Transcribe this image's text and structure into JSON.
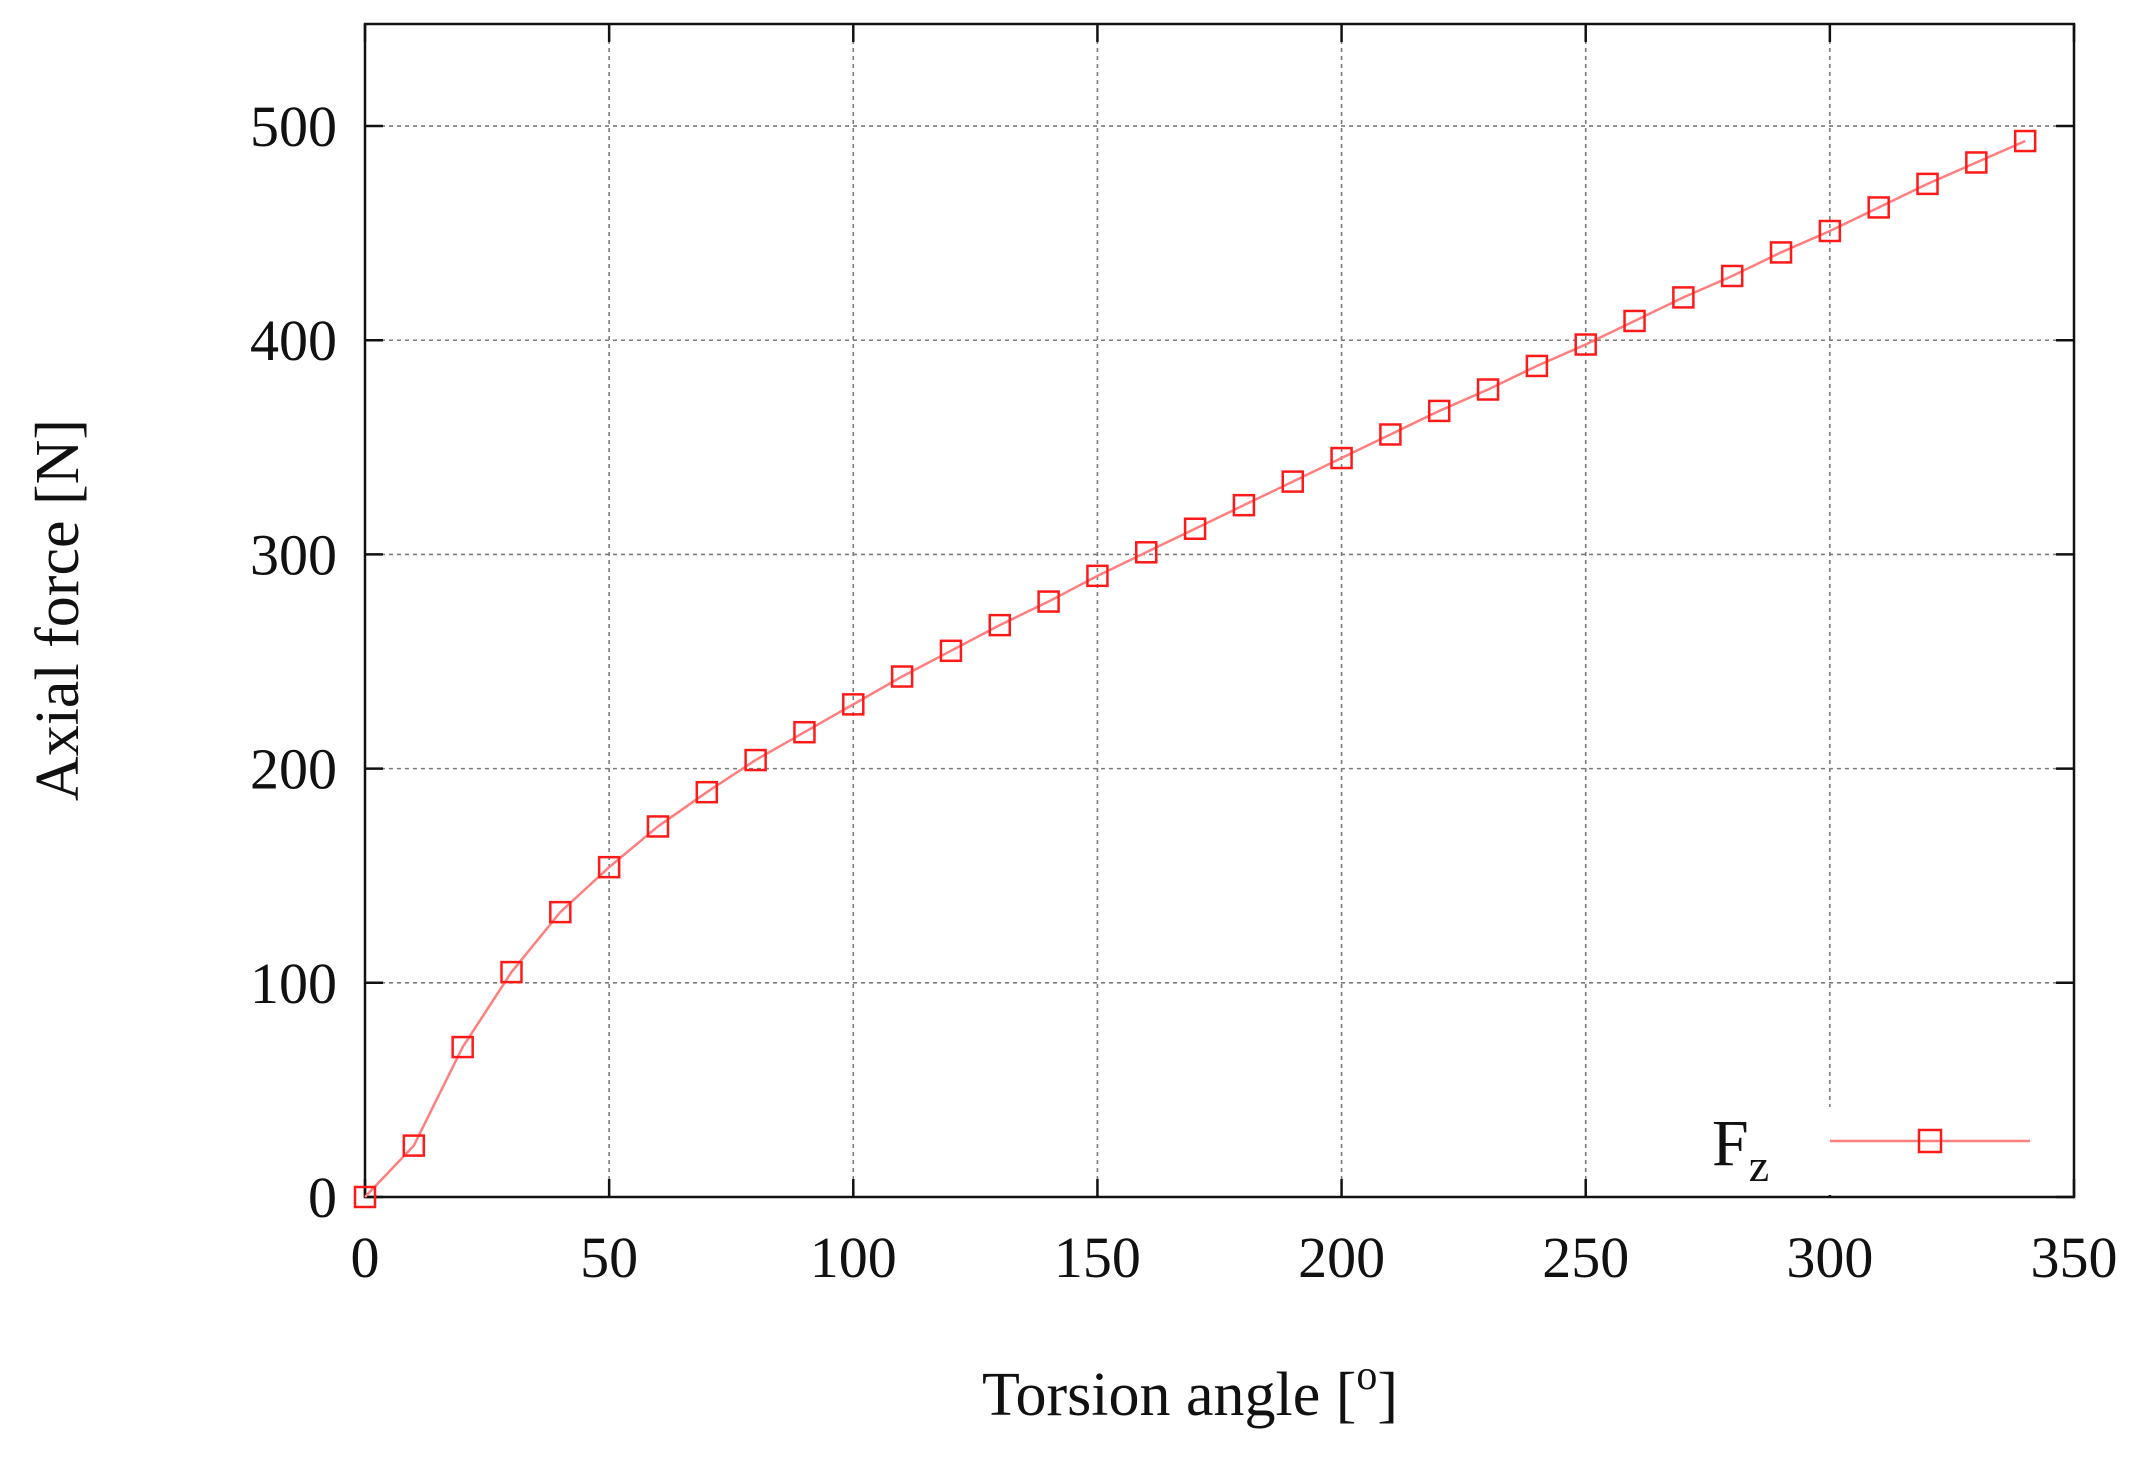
{
  "colors": {
    "series": "#ff1a1a",
    "line": "#ff7f7f",
    "grid": "#7a7a7a",
    "axis": "#111111",
    "background": "#ffffff"
  },
  "chart_data": {
    "type": "line",
    "title": "",
    "xlabel": "Torsion angle [",
    "xlabel_sup": "o",
    "xlabel_end": "]",
    "ylabel": "Axial force [N]",
    "xlim": [
      0,
      350
    ],
    "ylim": [
      0,
      500
    ],
    "x_ticks": [
      0,
      50,
      100,
      150,
      200,
      250,
      300,
      350
    ],
    "y_ticks": [
      0,
      100,
      200,
      300,
      400,
      500
    ],
    "grid": true,
    "legend_position": "bottom-right",
    "marker": "square",
    "series": [
      {
        "name": "F",
        "name_sub": "z",
        "x": [
          0,
          10,
          20,
          30,
          40,
          50,
          60,
          70,
          80,
          90,
          100,
          110,
          120,
          130,
          140,
          150,
          160,
          170,
          180,
          190,
          200,
          210,
          220,
          230,
          240,
          250,
          260,
          270,
          280,
          290,
          300,
          310,
          320,
          330,
          340
        ],
        "y": [
          0,
          24,
          70,
          105,
          133,
          154,
          173,
          189,
          204,
          217,
          230,
          243,
          255,
          267,
          278,
          290,
          301,
          312,
          323,
          334,
          345,
          356,
          367,
          377,
          388,
          398,
          409,
          420,
          430,
          441,
          451,
          462,
          473,
          483,
          493
        ]
      }
    ]
  }
}
